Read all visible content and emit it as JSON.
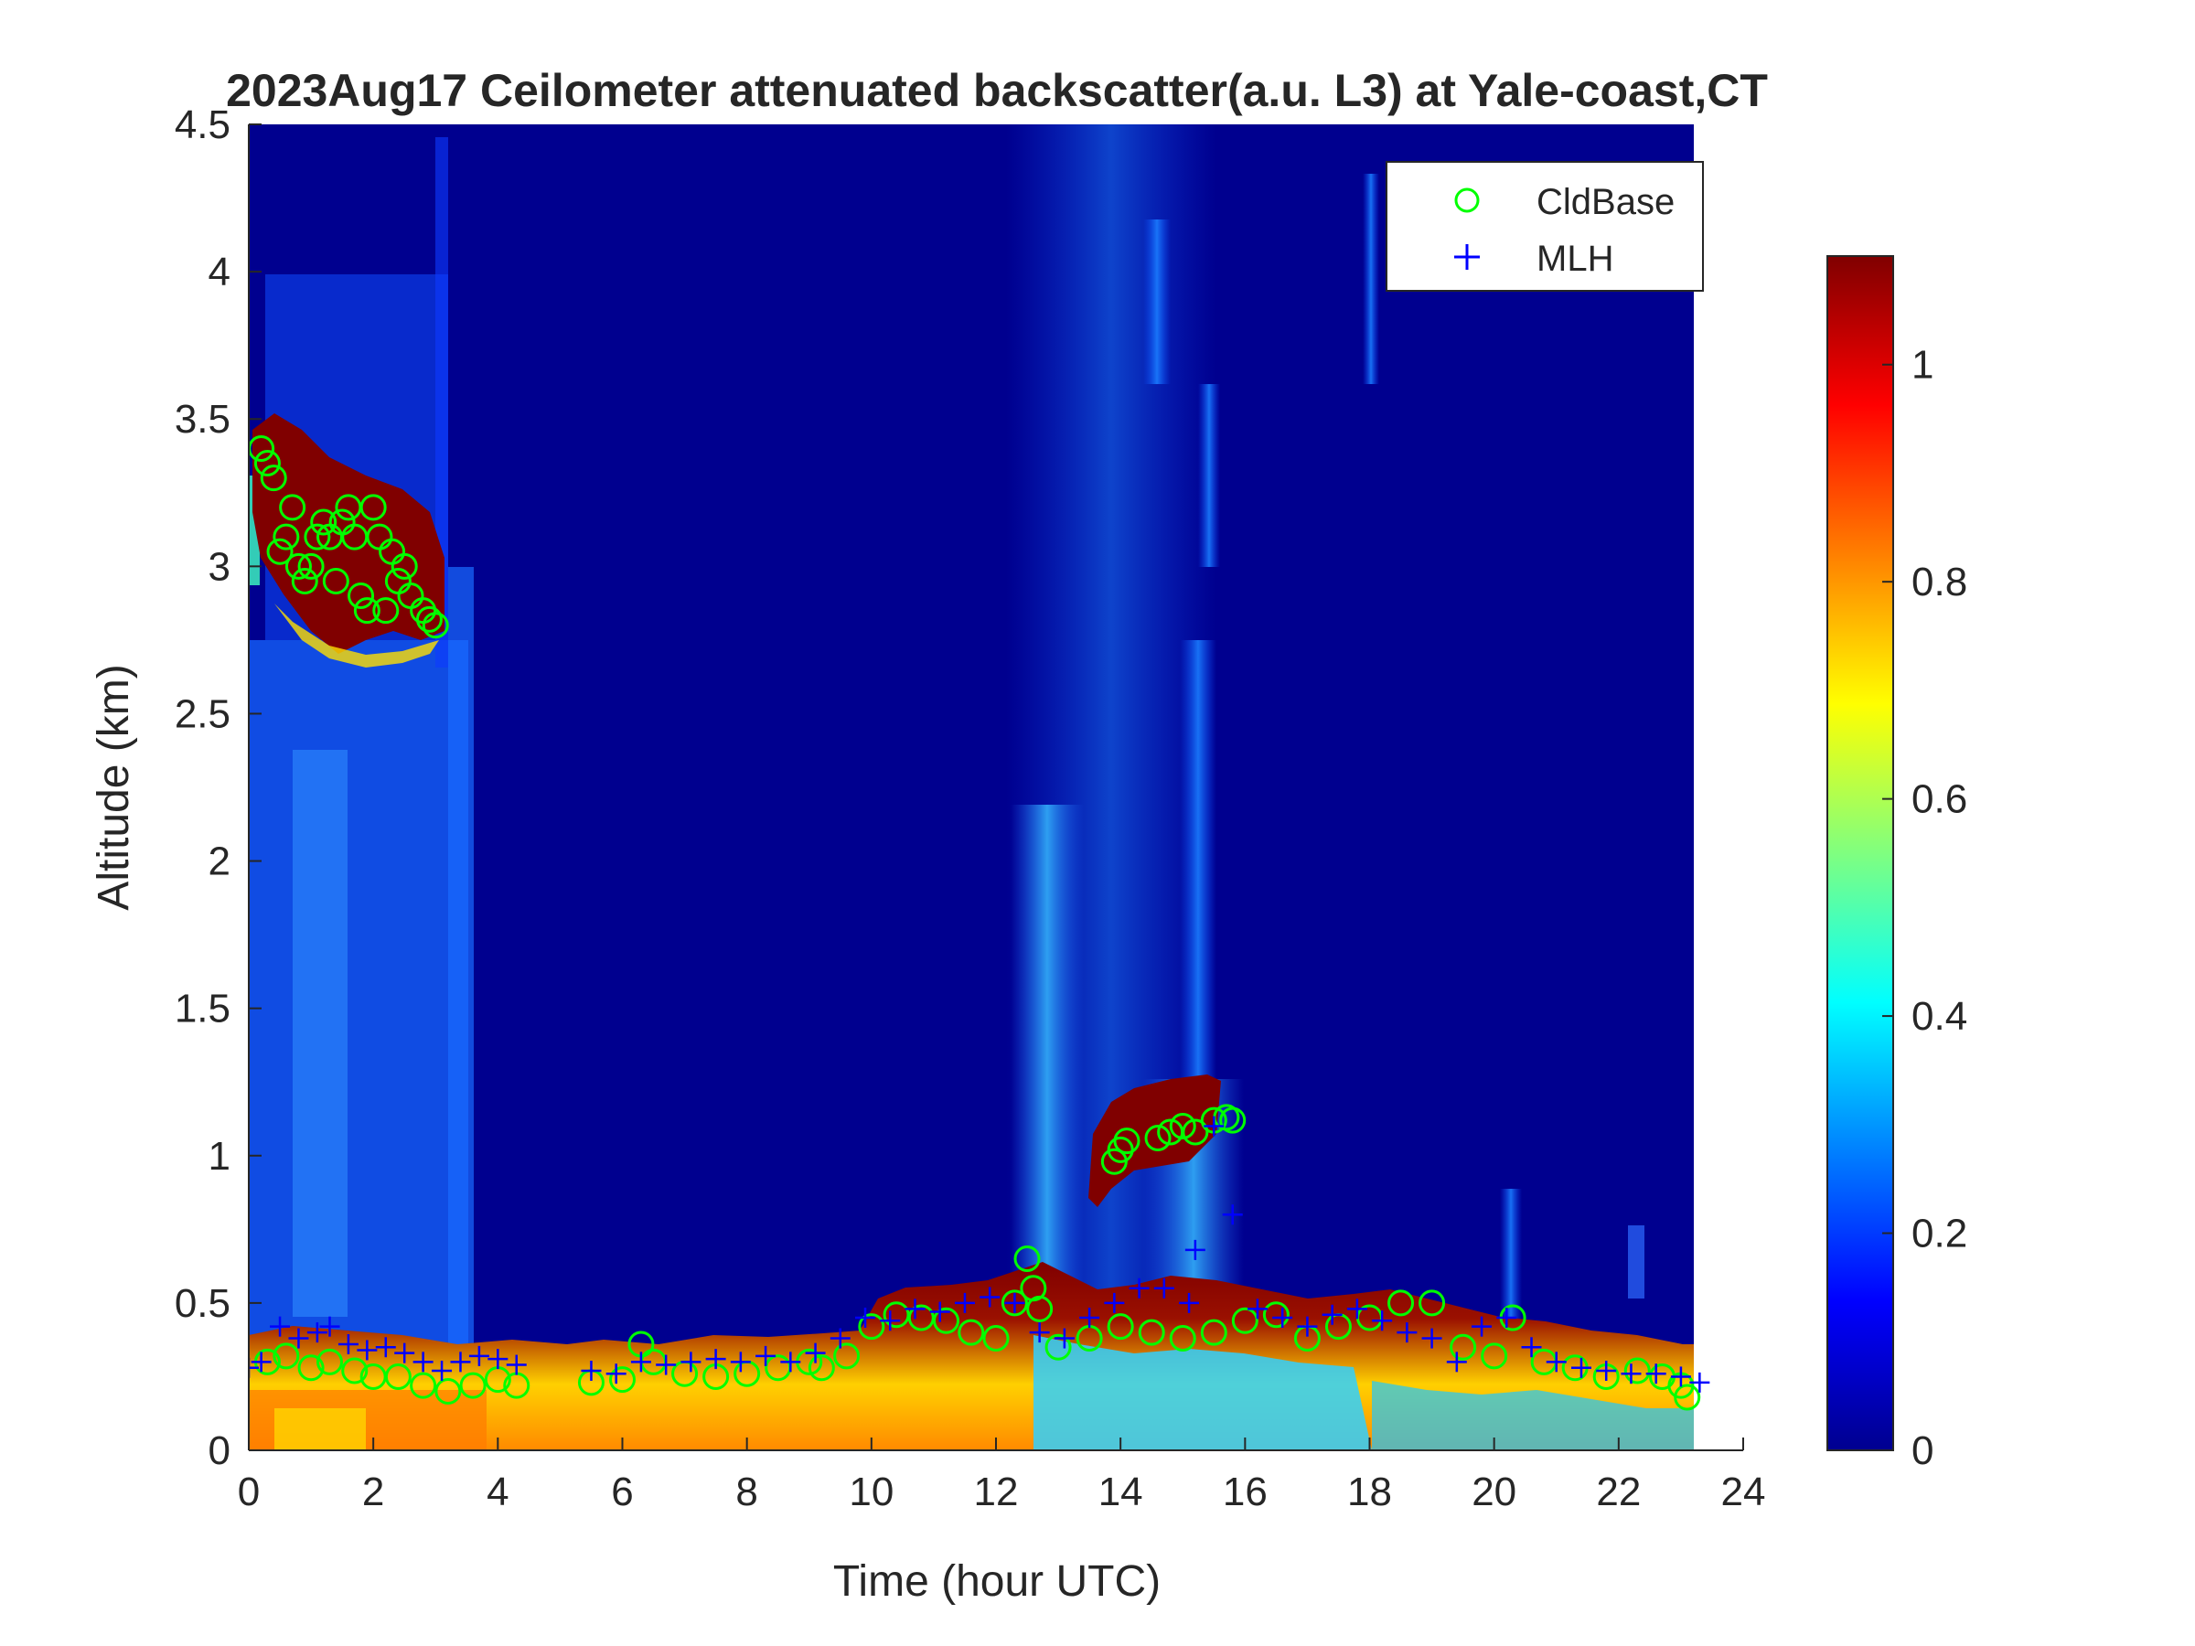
{
  "chart_data": {
    "type": "heatmap",
    "title": "2023Aug17 Ceilometer attenuated backscatter(a.u. L3) at Yale-coast,CT",
    "xlabel": "Time (hour UTC)",
    "ylabel": "Altitude (km)",
    "xlim": [
      0,
      24
    ],
    "ylim": [
      0,
      4.5
    ],
    "x_ticks": [
      "0",
      "2",
      "4",
      "6",
      "8",
      "10",
      "12",
      "14",
      "16",
      "18",
      "20",
      "22",
      "24"
    ],
    "y_ticks": [
      "0",
      "0.5",
      "1",
      "1.5",
      "2",
      "2.5",
      "3",
      "3.5",
      "4",
      "4.5"
    ],
    "data_extent_hours": [
      0,
      23.2
    ],
    "colorbar": {
      "colormap": "jet",
      "range": [
        0,
        1.1
      ],
      "ticks": [
        "0",
        "0.2",
        "0.4",
        "0.6",
        "0.8",
        "1"
      ]
    },
    "legend": {
      "position": "top-right",
      "entries": [
        {
          "label": "CldBase",
          "marker": "circle",
          "color": "#00ff00"
        },
        {
          "label": "MLH",
          "marker": "plus",
          "color": "#0000ff"
        }
      ]
    },
    "backscatter_features": [
      {
        "name": "high cloud layer",
        "t": [
          0.1,
          3.0
        ],
        "z_base": [
          3.4,
          2.75
        ],
        "value": 1.1
      },
      {
        "name": "near-surface aerosol layer",
        "t": [
          0.0,
          23.2
        ],
        "z_top": 0.5,
        "value": 0.8
      },
      {
        "name": "mid-morning cloud",
        "t": [
          13.4,
          15.9
        ],
        "z": [
          0.95,
          1.2
        ],
        "value": 1.1
      },
      {
        "name": "convective plume",
        "t": [
          12.4,
          16.0
        ],
        "z": [
          0.3,
          4.5
        ],
        "value": 0.3
      }
    ],
    "series": [
      {
        "name": "CldBase",
        "x": [
          0.2,
          0.3,
          0.4,
          0.5,
          0.6,
          0.7,
          0.8,
          0.9,
          1.0,
          1.1,
          1.2,
          1.3,
          1.4,
          1.5,
          1.6,
          1.7,
          1.8,
          1.9,
          2.0,
          2.1,
          2.2,
          2.3,
          2.4,
          2.5,
          2.6,
          2.8,
          2.9,
          3.0,
          0.3,
          0.6,
          1.0,
          1.3,
          1.7,
          2.0,
          2.4,
          2.8,
          3.2,
          3.6,
          4.0,
          4.3,
          5.5,
          6.0,
          6.3,
          6.5,
          7.0,
          7.5,
          8.0,
          8.5,
          9.0,
          9.2,
          9.6,
          10.0,
          10.4,
          10.8,
          11.2,
          11.6,
          12.0,
          12.3,
          12.5,
          12.6,
          12.7,
          13.0,
          13.5,
          14.0,
          14.5,
          15.0,
          15.5,
          16.0,
          16.5,
          17.0,
          17.5,
          18.0,
          18.5,
          19.0,
          19.5,
          20.0,
          20.3,
          20.8,
          21.3,
          21.8,
          22.3,
          22.7,
          23.0,
          23.1,
          13.9,
          14.0,
          14.1,
          14.6,
          14.8,
          15.0,
          15.2,
          15.5,
          15.7,
          15.8
        ],
        "y": [
          3.4,
          3.35,
          3.3,
          3.05,
          3.1,
          3.2,
          3.0,
          2.95,
          3.0,
          3.1,
          3.15,
          3.1,
          2.95,
          3.15,
          3.2,
          3.1,
          2.9,
          2.85,
          3.2,
          3.1,
          2.85,
          3.05,
          2.95,
          3.0,
          2.9,
          2.85,
          2.82,
          2.8,
          0.3,
          0.32,
          0.28,
          0.3,
          0.27,
          0.25,
          0.25,
          0.22,
          0.2,
          0.22,
          0.24,
          0.22,
          0.23,
          0.24,
          0.36,
          0.3,
          0.26,
          0.25,
          0.26,
          0.28,
          0.3,
          0.28,
          0.32,
          0.42,
          0.46,
          0.45,
          0.44,
          0.4,
          0.38,
          0.5,
          0.65,
          0.55,
          0.48,
          0.35,
          0.38,
          0.42,
          0.4,
          0.38,
          0.4,
          0.44,
          0.46,
          0.38,
          0.42,
          0.45,
          0.5,
          0.5,
          0.35,
          0.32,
          0.45,
          0.3,
          0.28,
          0.25,
          0.27,
          0.25,
          0.22,
          0.18,
          0.98,
          1.02,
          1.05,
          1.06,
          1.08,
          1.1,
          1.08,
          1.12,
          1.13,
          1.12
        ]
      },
      {
        "name": "MLH",
        "x": [
          0.0,
          0.2,
          0.5,
          0.8,
          1.1,
          1.3,
          1.6,
          1.9,
          2.2,
          2.5,
          2.8,
          3.1,
          3.4,
          3.7,
          4.0,
          4.3,
          5.5,
          5.9,
          6.3,
          6.7,
          7.1,
          7.5,
          7.9,
          8.3,
          8.7,
          9.1,
          9.5,
          9.9,
          10.3,
          10.7,
          11.1,
          11.5,
          11.9,
          12.3,
          12.7,
          13.1,
          13.5,
          13.9,
          14.3,
          14.7,
          15.1,
          15.5,
          15.2,
          15.8,
          16.2,
          16.6,
          17.0,
          17.4,
          17.8,
          18.2,
          18.6,
          19.0,
          19.4,
          19.8,
          20.2,
          20.6,
          21.0,
          21.4,
          21.8,
          22.2,
          22.6,
          23.0,
          23.3
        ],
        "y": [
          0.28,
          0.3,
          0.42,
          0.38,
          0.4,
          0.42,
          0.36,
          0.34,
          0.35,
          0.33,
          0.3,
          0.27,
          0.3,
          0.32,
          0.31,
          0.29,
          0.27,
          0.26,
          0.3,
          0.29,
          0.3,
          0.31,
          0.3,
          0.32,
          0.3,
          0.33,
          0.38,
          0.45,
          0.44,
          0.48,
          0.47,
          0.5,
          0.52,
          0.5,
          0.4,
          0.38,
          0.45,
          0.5,
          0.55,
          0.55,
          0.5,
          1.1,
          0.68,
          0.8,
          0.48,
          0.45,
          0.42,
          0.46,
          0.48,
          0.44,
          0.4,
          0.38,
          0.3,
          0.42,
          0.45,
          0.35,
          0.3,
          0.28,
          0.27,
          0.26,
          0.26,
          0.25,
          0.23
        ]
      }
    ]
  }
}
